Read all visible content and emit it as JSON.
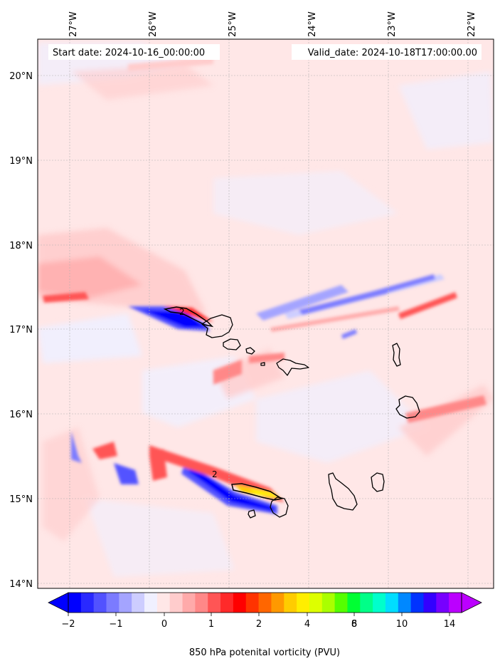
{
  "map": {
    "info_left": "Start date: 2024-10-16_00:00:00",
    "info_right": "Valid_date: 2024-10-18T17:00:00.00",
    "lon_labels": [
      "27°W",
      "26°W",
      "25°W",
      "24°W",
      "23°W",
      "22°W"
    ],
    "lat_labels": [
      "20°N",
      "19°N",
      "18°N",
      "17°N",
      "16°N",
      "15°N",
      "14°N"
    ],
    "contour_labels": [
      "2",
      "2"
    ],
    "background_color": "#ffe7e7"
  },
  "colorbar": {
    "title": "850 hPa potenital vorticity (PVU)",
    "tick_labels": [
      "−2",
      "−1",
      "0",
      "1",
      "2",
      "4",
      "6",
      "8",
      "10",
      "14"
    ],
    "colors": [
      "#0000ff",
      "#2929ff",
      "#5252ff",
      "#7b7bff",
      "#a4a4ff",
      "#cdcdff",
      "#f0f0ff",
      "#ffe7e7",
      "#ffcccc",
      "#ffaaaa",
      "#ff8888",
      "#ff5555",
      "#ff2a2a",
      "#ff0000",
      "#ff3300",
      "#ff6600",
      "#ff9900",
      "#ffcc00",
      "#ffee00",
      "#ddff00",
      "#aaff00",
      "#55ff00",
      "#00ff33",
      "#00ff88",
      "#00ffcc",
      "#00ddff",
      "#0088ff",
      "#0033ff",
      "#3300ff",
      "#7700ff",
      "#bb00ff"
    ]
  }
}
